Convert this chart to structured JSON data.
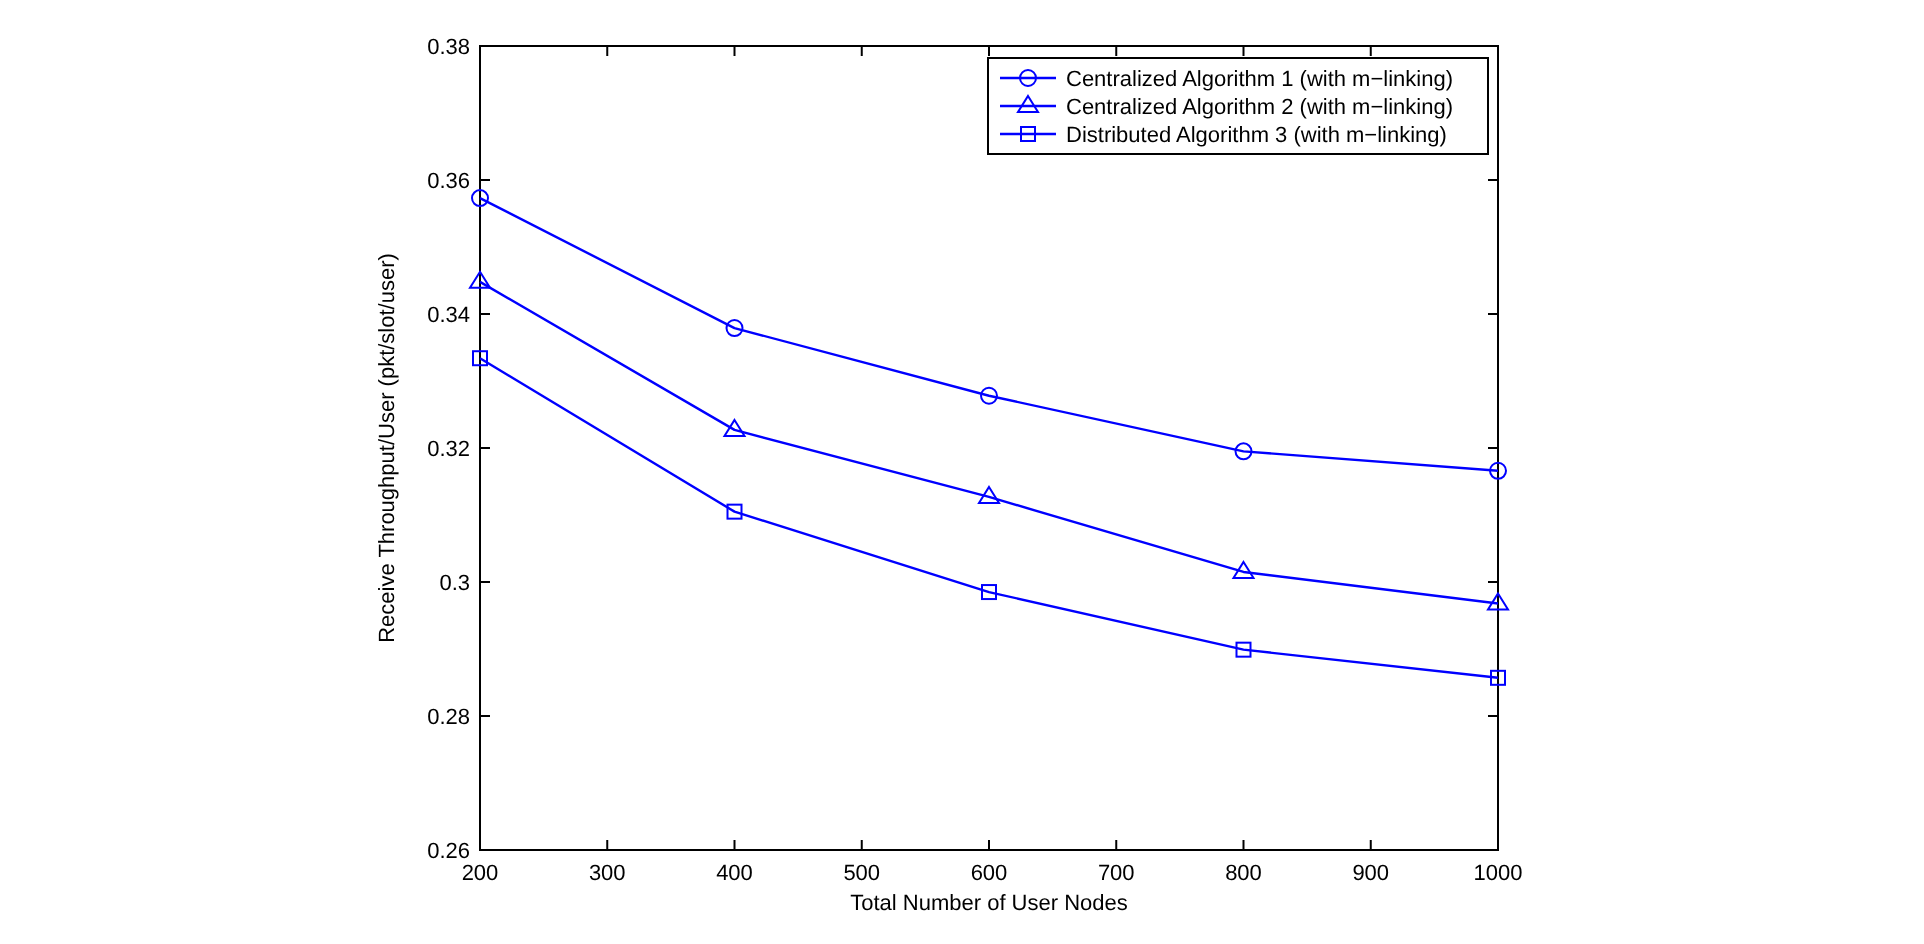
{
  "chart_data": {
    "type": "line",
    "xlabel": "Total Number of User Nodes",
    "ylabel": "Receive Throughput/User (pkt/slot/user)",
    "x": [
      200,
      400,
      600,
      800,
      1000
    ],
    "xlim": [
      200,
      1000
    ],
    "xticks": [
      200,
      300,
      400,
      500,
      600,
      700,
      800,
      900,
      1000
    ],
    "ylim": [
      0.26,
      0.38
    ],
    "yticks": [
      0.26,
      0.28,
      {
        "value": 0.3,
        "label": "0.3"
      },
      0.32,
      0.34,
      0.36,
      0.38
    ],
    "grid": false,
    "legend": "top right",
    "line_style": "solid",
    "series": [
      {
        "name": "Centralized Algorithm 1 (with m−linking)",
        "color": "#0000ff",
        "marker": "circle",
        "values": [
          0.3573,
          0.3379,
          0.3278,
          0.3195,
          0.3166
        ]
      },
      {
        "name": "Centralized Algorithm 2 (with m−linking)",
        "color": "#0000ff",
        "marker": "triangle",
        "values": [
          0.3448,
          0.3227,
          0.3127,
          0.3015,
          0.2968
        ]
      },
      {
        "name": "Distributed Algorithm 3 (with m−linking)",
        "color": "#0000ff",
        "marker": "square",
        "values": [
          0.3334,
          0.3105,
          0.2985,
          0.2899,
          0.2857
        ]
      }
    ]
  }
}
